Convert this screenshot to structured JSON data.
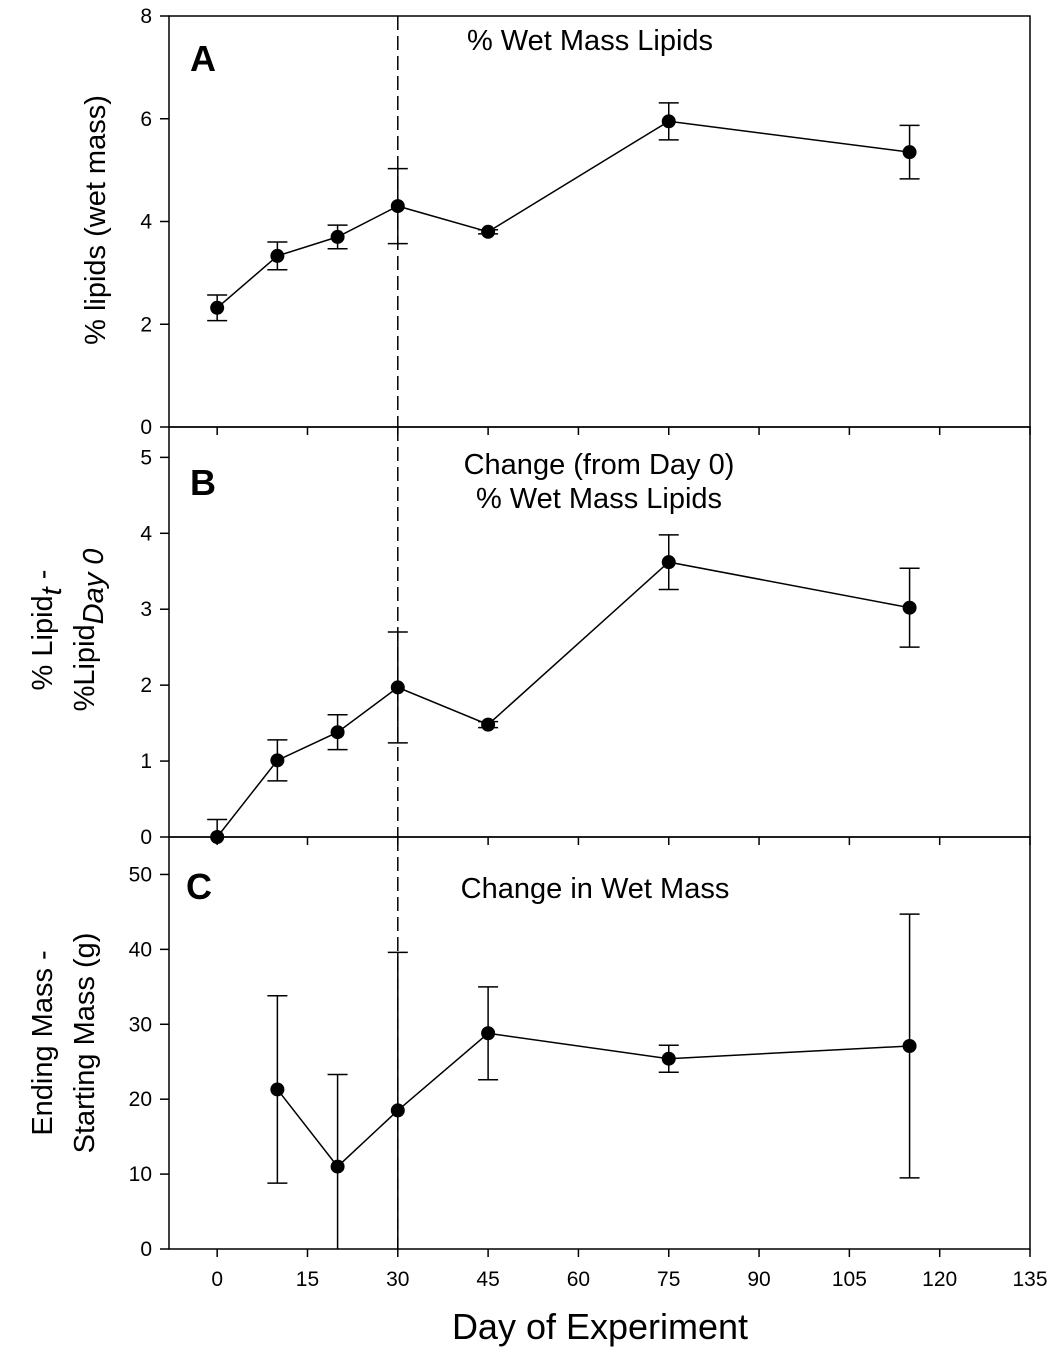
{
  "chart_data": [
    {
      "type": "line",
      "panel_letter": "A",
      "title": "% Wet Mass Lipids",
      "ylabel": "% lipids (wet mass)",
      "ylim": [
        0,
        8
      ],
      "yticks": [
        0,
        2,
        4,
        6,
        8
      ],
      "xlim": [
        -8,
        135
      ],
      "x": [
        0,
        10,
        20,
        30,
        45,
        75,
        115
      ],
      "series": [
        {
          "values": [
            2.32,
            3.33,
            3.7,
            4.3,
            3.8,
            5.95,
            5.35
          ],
          "errors": [
            0.25,
            0.27,
            0.23,
            0.73,
            0.04,
            0.36,
            0.52
          ]
        }
      ],
      "reference_line_x": 30
    },
    {
      "type": "line",
      "panel_letter": "B",
      "title": "Change (from Day 0)",
      "subtitle": "% Wet Mass Lipids",
      "ylabel_line1": "% Lipid",
      "ylabel_line1_sub": "t",
      "ylabel_line1_suffix": " -",
      "ylabel_line2": "%Lipid",
      "ylabel_line2_sub": "Day 0",
      "ylim": [
        0,
        5.4
      ],
      "yticks": [
        0,
        1,
        2,
        3,
        4,
        5
      ],
      "xlim": [
        -8,
        135
      ],
      "x": [
        0,
        10,
        20,
        30,
        45,
        75,
        115
      ],
      "series": [
        {
          "values": [
            0.0,
            1.01,
            1.38,
            1.97,
            1.48,
            3.62,
            3.02
          ],
          "errors": [
            0.23,
            0.27,
            0.23,
            0.73,
            0.04,
            0.36,
            0.52
          ]
        }
      ],
      "reference_line_x": 30
    },
    {
      "type": "line",
      "panel_letter": "C",
      "title": "Change in Wet Mass",
      "ylabel_line1": "Ending Mass -",
      "ylabel_line2": "Starting Mass (g)",
      "ylim": [
        0,
        55
      ],
      "yticks": [
        0,
        10,
        20,
        30,
        40,
        50
      ],
      "xlim": [
        -8,
        135
      ],
      "xticks": [
        0,
        15,
        30,
        45,
        60,
        75,
        90,
        105,
        120,
        135
      ],
      "xlabel": "Day of Experiment",
      "x": [
        10,
        20,
        30,
        45,
        75,
        115
      ],
      "series": [
        {
          "values": [
            21.3,
            11.0,
            18.5,
            28.8,
            25.4,
            27.1
          ],
          "errors": [
            12.5,
            12.3,
            21.1,
            6.2,
            1.8,
            17.6
          ]
        }
      ],
      "reference_line_x": 30
    }
  ]
}
